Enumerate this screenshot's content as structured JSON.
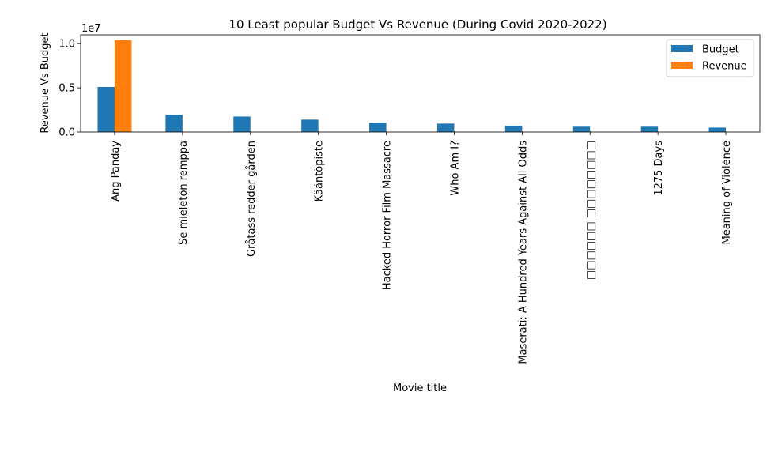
{
  "chart_data": {
    "type": "bar",
    "title": "10 Least popular Budget Vs Revenue (During Covid 2020-2022)",
    "xlabel": "Movie title",
    "ylabel": "Revenue Vs Budget",
    "y_offset_label": "1e7",
    "ylim": [
      0,
      11000000
    ],
    "yticks": [
      {
        "value": 0,
        "label": "0.0"
      },
      {
        "value": 5000000,
        "label": "0.5"
      },
      {
        "value": 10000000,
        "label": "1.0"
      }
    ],
    "categories": [
      "Ang Panday",
      "Se mieletön remppa",
      "Gråtass redder gården",
      "Kääntöpiste",
      "Hacked Horror Film Massacre",
      "Who Am I?",
      "Maserati: A Hundred Years Against All Odds",
      "□□□□□□ □□□□□□□□",
      "1275 Days",
      "Meaning of Violence"
    ],
    "series": [
      {
        "name": "Budget",
        "color": "#1f77b4",
        "values": [
          5100000,
          1950000,
          1750000,
          1400000,
          1050000,
          950000,
          700000,
          600000,
          600000,
          500000
        ]
      },
      {
        "name": "Revenue",
        "color": "#ff7f0e",
        "values": [
          10400000,
          0,
          0,
          0,
          0,
          0,
          0,
          0,
          0,
          0
        ]
      }
    ],
    "legend_position": "top-right",
    "grid": false
  }
}
